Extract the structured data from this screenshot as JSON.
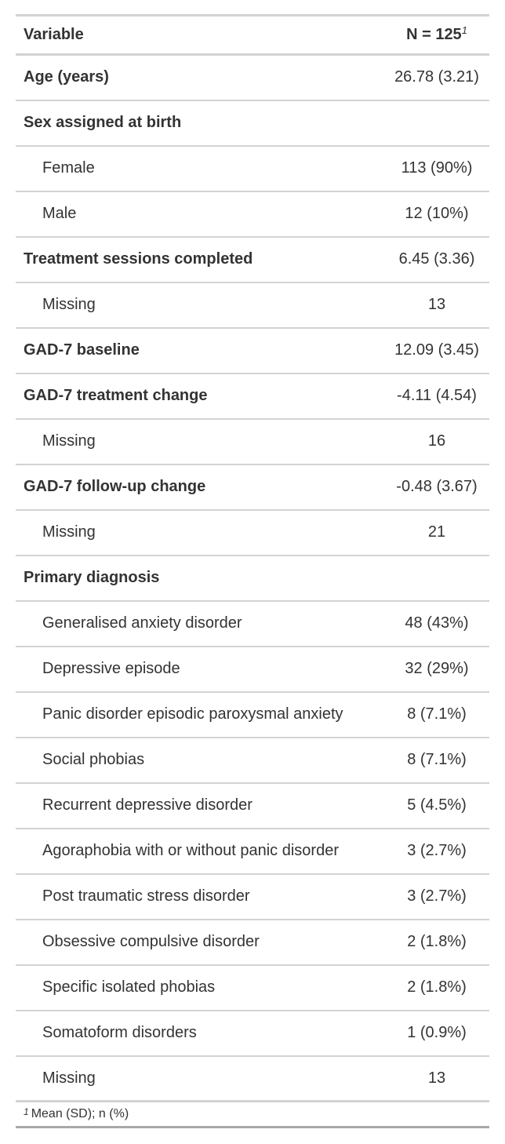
{
  "header": {
    "variable_label": "Variable",
    "n_label": "N = 125",
    "n_footnote_mark": "1"
  },
  "rows": [
    {
      "label": "Age (years)",
      "value": "26.78 (3.21)",
      "style": "bold"
    },
    {
      "label": "Sex assigned at birth",
      "value": "",
      "style": "bold"
    },
    {
      "label": "Female",
      "value": "113 (90%)",
      "style": "indent"
    },
    {
      "label": "Male",
      "value": "12 (10%)",
      "style": "indent"
    },
    {
      "label": "Treatment sessions completed",
      "value": "6.45 (3.36)",
      "style": "bold"
    },
    {
      "label": "Missing",
      "value": "13",
      "style": "indent"
    },
    {
      "label": "GAD-7 baseline",
      "value": "12.09 (3.45)",
      "style": "bold"
    },
    {
      "label": "GAD-7 treatment change",
      "value": "-4.11 (4.54)",
      "style": "bold"
    },
    {
      "label": "Missing",
      "value": "16",
      "style": "indent"
    },
    {
      "label": "GAD-7 follow-up change",
      "value": "-0.48 (3.67)",
      "style": "bold"
    },
    {
      "label": "Missing",
      "value": "21",
      "style": "indent"
    },
    {
      "label": "Primary diagnosis",
      "value": "",
      "style": "bold"
    },
    {
      "label": "Generalised anxiety disorder",
      "value": "48 (43%)",
      "style": "indent"
    },
    {
      "label": "Depressive episode",
      "value": "32 (29%)",
      "style": "indent"
    },
    {
      "label": "Panic disorder episodic paroxysmal anxiety",
      "value": "8 (7.1%)",
      "style": "indent"
    },
    {
      "label": "Social phobias",
      "value": "8 (7.1%)",
      "style": "indent"
    },
    {
      "label": "Recurrent depressive disorder",
      "value": "5 (4.5%)",
      "style": "indent"
    },
    {
      "label": "Agoraphobia with or without panic disorder",
      "value": "3 (2.7%)",
      "style": "indent"
    },
    {
      "label": "Post traumatic stress disorder",
      "value": "3 (2.7%)",
      "style": "indent"
    },
    {
      "label": "Obsessive compulsive disorder",
      "value": "2 (1.8%)",
      "style": "indent"
    },
    {
      "label": "Specific isolated phobias",
      "value": "2 (1.8%)",
      "style": "indent"
    },
    {
      "label": "Somatoform disorders",
      "value": "1 (0.9%)",
      "style": "indent"
    },
    {
      "label": "Missing",
      "value": "13",
      "style": "indent"
    }
  ],
  "footnote": {
    "mark": "1",
    "text": "Mean (SD); n (%)"
  }
}
